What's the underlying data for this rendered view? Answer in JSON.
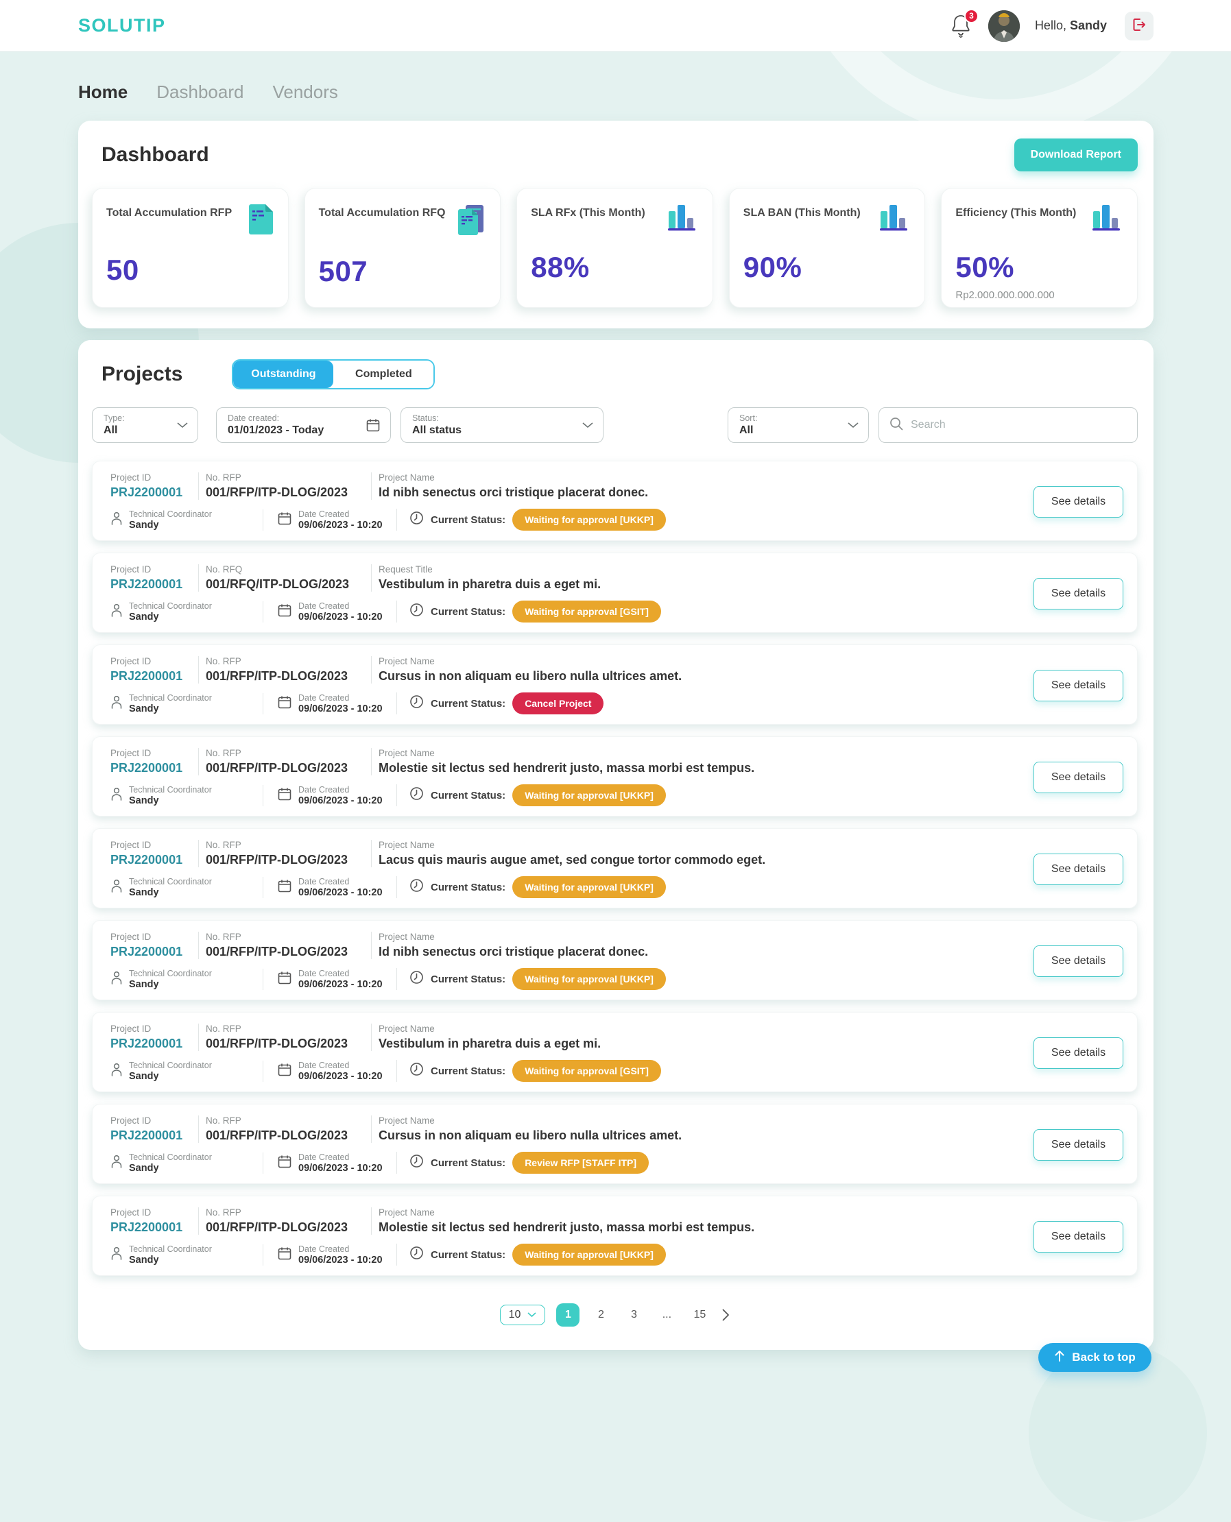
{
  "header": {
    "logo": "SOLUTIP",
    "notification_count": "3",
    "greeting_prefix": "Hello, ",
    "user_name": "Sandy"
  },
  "nav": {
    "items": [
      {
        "label": "Home",
        "active": true
      },
      {
        "label": "Dashboard",
        "active": false
      },
      {
        "label": "Vendors",
        "active": false
      }
    ]
  },
  "dashboard": {
    "title": "Dashboard",
    "download_button": "Download Report",
    "stats": [
      {
        "label": "Total Accumulation RFP",
        "value": "50",
        "subvalue": "",
        "icon": "document-icon"
      },
      {
        "label": "Total Accumulation RFQ",
        "value": "507",
        "subvalue": "",
        "icon": "documents-icon"
      },
      {
        "label": "SLA RFx (This Month)",
        "value": "88%",
        "subvalue": "",
        "icon": "bar-chart-icon"
      },
      {
        "label": "SLA BAN (This Month)",
        "value": "90%",
        "subvalue": "",
        "icon": "bar-chart-icon"
      },
      {
        "label": "Efficiency (This Month)",
        "value": "50%",
        "subvalue": "Rp2.000.000.000.000",
        "icon": "bar-chart-icon"
      }
    ]
  },
  "projects": {
    "title": "Projects",
    "tabs": [
      {
        "label": "Outstanding",
        "active": true
      },
      {
        "label": "Completed",
        "active": false
      }
    ],
    "filters": {
      "type": {
        "label": "Type:",
        "value": "All"
      },
      "date": {
        "label": "Date created:",
        "value": "01/01/2023 - Today"
      },
      "status": {
        "label": "Status:",
        "value": "All status"
      },
      "sort": {
        "label": "Sort:",
        "value": "All"
      },
      "search_placeholder": "Search"
    },
    "field_labels": {
      "project_id": "Project ID",
      "coordinator": "Technical Coordinator",
      "date_created": "Date Created",
      "current_status": "Current Status:",
      "see_details": "See details"
    },
    "rows": [
      {
        "id": "PRJ2200001",
        "no_label": "No. RFP",
        "no": "001/RFP/ITP-DLOG/2023",
        "name_label": "Project Name",
        "name": "Id nibh senectus orci tristique placerat donec.",
        "coordinator": "Sandy",
        "date": "09/06/2023 - 10:20",
        "status": "Waiting for approval [UKKP]",
        "status_color": "orange"
      },
      {
        "id": "PRJ2200001",
        "no_label": "No. RFQ",
        "no": "001/RFQ/ITP-DLOG/2023",
        "name_label": "Request Title",
        "name": "Vestibulum in pharetra duis a eget mi.",
        "coordinator": "Sandy",
        "date": "09/06/2023 - 10:20",
        "status": "Waiting for approval [GSIT]",
        "status_color": "orange"
      },
      {
        "id": "PRJ2200001",
        "no_label": "No. RFP",
        "no": "001/RFP/ITP-DLOG/2023",
        "name_label": "Project Name",
        "name": "Cursus in non aliquam eu libero nulla ultrices amet.",
        "coordinator": "Sandy",
        "date": "09/06/2023 - 10:20",
        "status": "Cancel Project",
        "status_color": "red"
      },
      {
        "id": "PRJ2200001",
        "no_label": "No. RFP",
        "no": "001/RFP/ITP-DLOG/2023",
        "name_label": "Project Name",
        "name": "Molestie sit lectus sed hendrerit justo, massa morbi est tempus.",
        "coordinator": "Sandy",
        "date": "09/06/2023 - 10:20",
        "status": "Waiting for approval [UKKP]",
        "status_color": "orange"
      },
      {
        "id": "PRJ2200001",
        "no_label": "No. RFP",
        "no": "001/RFP/ITP-DLOG/2023",
        "name_label": "Project Name",
        "name": "Lacus quis mauris augue amet, sed congue tortor commodo eget.",
        "coordinator": "Sandy",
        "date": "09/06/2023 - 10:20",
        "status": "Waiting for approval [UKKP]",
        "status_color": "orange"
      },
      {
        "id": "PRJ2200001",
        "no_label": "No. RFP",
        "no": "001/RFP/ITP-DLOG/2023",
        "name_label": "Project Name",
        "name": "Id nibh senectus orci tristique placerat donec.",
        "coordinator": "Sandy",
        "date": "09/06/2023 - 10:20",
        "status": "Waiting for approval [UKKP]",
        "status_color": "orange"
      },
      {
        "id": "PRJ2200001",
        "no_label": "No. RFP",
        "no": "001/RFP/ITP-DLOG/2023",
        "name_label": "Project Name",
        "name": "Vestibulum in pharetra duis a eget mi.",
        "coordinator": "Sandy",
        "date": "09/06/2023 - 10:20",
        "status": "Waiting for approval [GSIT]",
        "status_color": "orange"
      },
      {
        "id": "PRJ2200001",
        "no_label": "No. RFP",
        "no": "001/RFP/ITP-DLOG/2023",
        "name_label": "Project Name",
        "name": "Cursus in non aliquam eu libero nulla ultrices amet.",
        "coordinator": "Sandy",
        "date": "09/06/2023 - 10:20",
        "status": "Review RFP [STAFF ITP]",
        "status_color": "orange"
      },
      {
        "id": "PRJ2200001",
        "no_label": "No. RFP",
        "no": "001/RFP/ITP-DLOG/2023",
        "name_label": "Project Name",
        "name": "Molestie sit lectus sed hendrerit justo, massa morbi est tempus.",
        "coordinator": "Sandy",
        "date": "09/06/2023 - 10:20",
        "status": "Waiting for approval [UKKP]",
        "status_color": "orange"
      }
    ],
    "pagination": {
      "page_size": "10",
      "pages": [
        "1",
        "2",
        "3",
        "...",
        "15"
      ],
      "active_page": "1"
    }
  },
  "back_to_top_label": "Back to top",
  "colors": {
    "brand_teal": "#3BCBC3",
    "indigo_value": "#4838BC",
    "project_id_teal": "#2E8F9F",
    "badge_orange": "#E9A62B",
    "badge_red": "#D8294B",
    "toggle_blue": "#2BB1E7",
    "back_to_top_blue": "#23A8E5",
    "notification_red": "#E31D3C",
    "page_background": "#E4F2F0"
  }
}
